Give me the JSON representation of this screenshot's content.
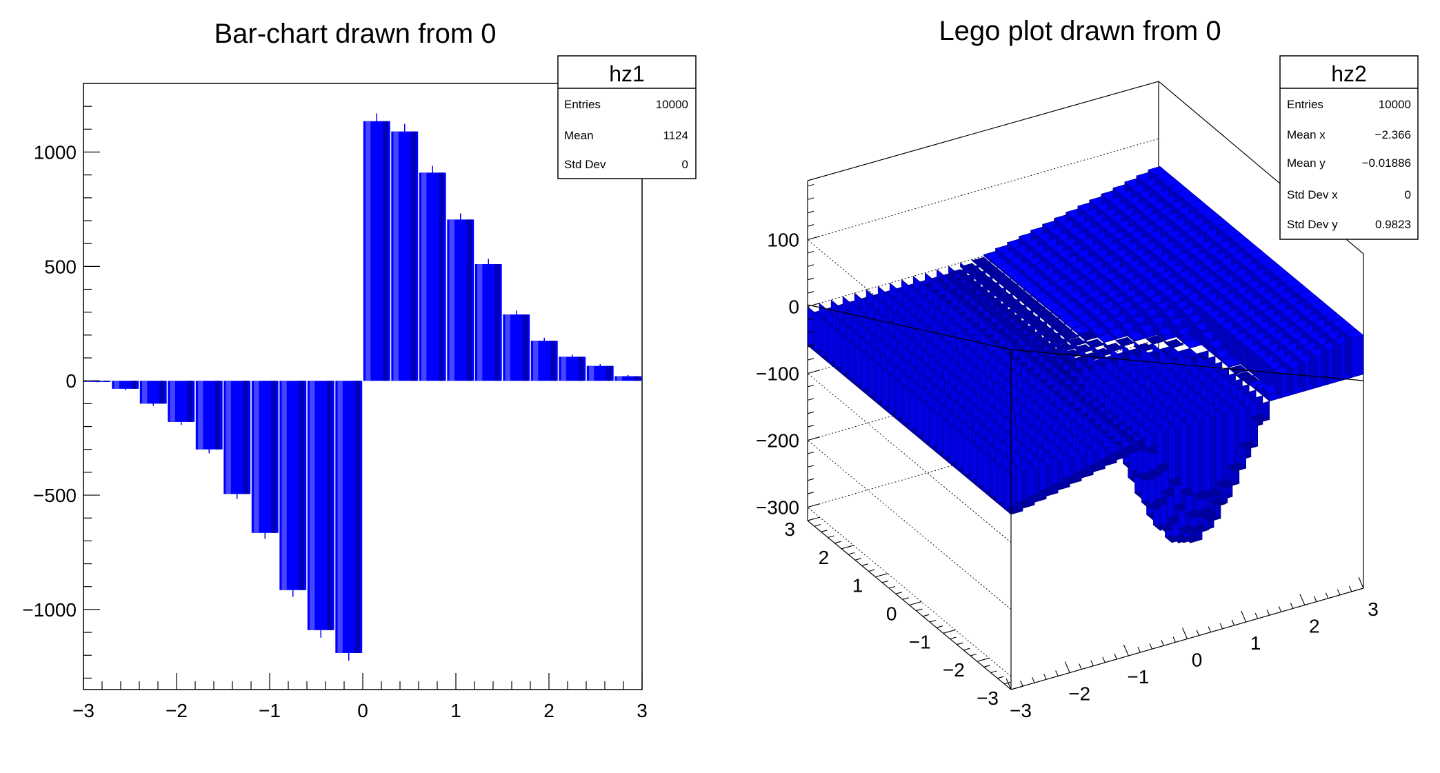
{
  "chart_data": [
    {
      "type": "bar",
      "title": "Bar-chart drawn from 0",
      "xlabel": "",
      "ylabel": "",
      "xlim": [
        -3,
        3
      ],
      "ylim": [
        -1350,
        1300
      ],
      "x_ticks": [
        "−3",
        "−2",
        "−1",
        "0",
        "1",
        "2",
        "3"
      ],
      "y_ticks": [
        "−1000",
        "−500",
        "0",
        "500",
        "1000"
      ],
      "bin_edges": [
        -3.0,
        -2.7,
        -2.4,
        -2.1,
        -1.8,
        -1.5,
        -1.2,
        -0.9,
        -0.6,
        -0.3,
        0.0,
        0.3,
        0.6,
        0.9,
        1.2,
        1.5,
        1.8,
        2.1,
        2.4,
        2.7,
        3.0
      ],
      "values": [
        -5,
        -35,
        -100,
        -180,
        -300,
        -495,
        -665,
        -915,
        -1090,
        -1190,
        1135,
        1090,
        910,
        705,
        510,
        290,
        175,
        105,
        65,
        20
      ],
      "errors": [
        2,
        6,
        10,
        13,
        17,
        22,
        26,
        30,
        33,
        34,
        34,
        33,
        30,
        27,
        23,
        17,
        13,
        10,
        8,
        5
      ],
      "fill_color": "#0000ff",
      "legend_position": "top-right",
      "stats": {
        "name": "hz1",
        "rows": [
          {
            "label": "Entries",
            "value": "10000"
          },
          {
            "label": "Mean",
            "value": "1124"
          },
          {
            "label": "Std Dev",
            "value": "0"
          }
        ]
      }
    },
    {
      "type": "heatmap",
      "render_style": "lego",
      "title": "Lego plot drawn from 0",
      "xlim": [
        -3,
        3
      ],
      "ylim": [
        -3,
        3
      ],
      "zlim": [
        -320,
        180
      ],
      "x_ticks": [
        "−3",
        "−2",
        "−1",
        "0",
        "1",
        "2",
        "3"
      ],
      "y_ticks": [
        "−3",
        "−2",
        "−1",
        "0",
        "1",
        "2",
        "3"
      ],
      "z_ticks": [
        "100",
        "0",
        "−100",
        "−200",
        "−300"
      ],
      "fill_color": "#0000ff",
      "legend_position": "top-right",
      "stats": {
        "name": "hz2",
        "rows": [
          {
            "label": "Entries",
            "value": "10000"
          },
          {
            "label": "Mean x",
            "value": "−2.366"
          },
          {
            "label": "Mean y",
            "value": "−0.01886"
          },
          {
            "label": "Std Dev x",
            "value": "0"
          },
          {
            "label": "Std Dev y",
            "value": "0.9823"
          }
        ]
      }
    }
  ]
}
